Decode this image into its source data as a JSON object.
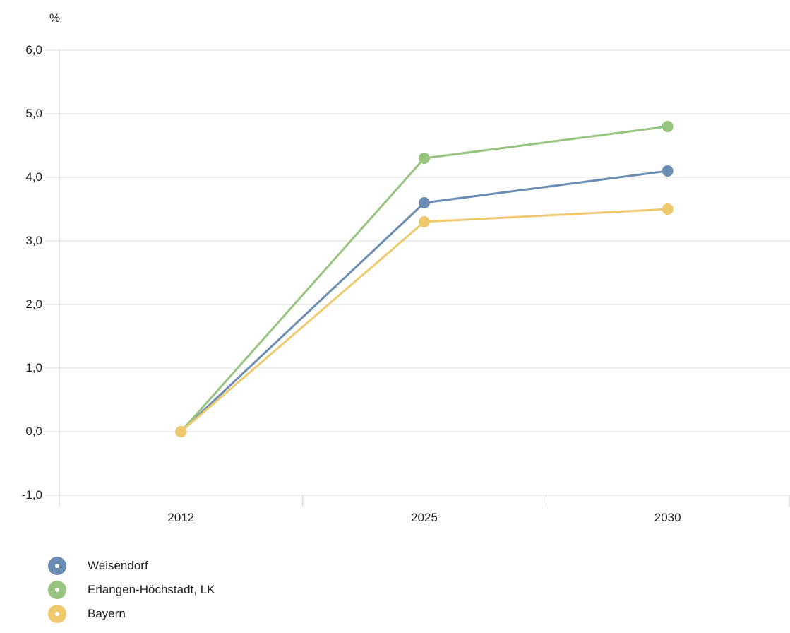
{
  "chart_data": {
    "type": "line",
    "unit_label": "%",
    "categories": [
      "2012",
      "2025",
      "2030"
    ],
    "ylim": [
      -1.0,
      6.0
    ],
    "yticks": [
      "-1,0",
      "0,0",
      "1,0",
      "2,0",
      "3,0",
      "4,0",
      "5,0",
      "6,0"
    ],
    "grid": true,
    "legend_position": "bottom-left",
    "series": [
      {
        "name": "Weisendorf",
        "color": "#6b8cb3",
        "values": [
          0.0,
          3.6,
          4.1
        ]
      },
      {
        "name": "Erlangen-Höchstadt, LK",
        "color": "#97c47e",
        "values": [
          0.0,
          4.3,
          4.8
        ]
      },
      {
        "name": "Bayern",
        "color": "#efc96e",
        "values": [
          0.0,
          3.3,
          3.5
        ]
      }
    ]
  }
}
